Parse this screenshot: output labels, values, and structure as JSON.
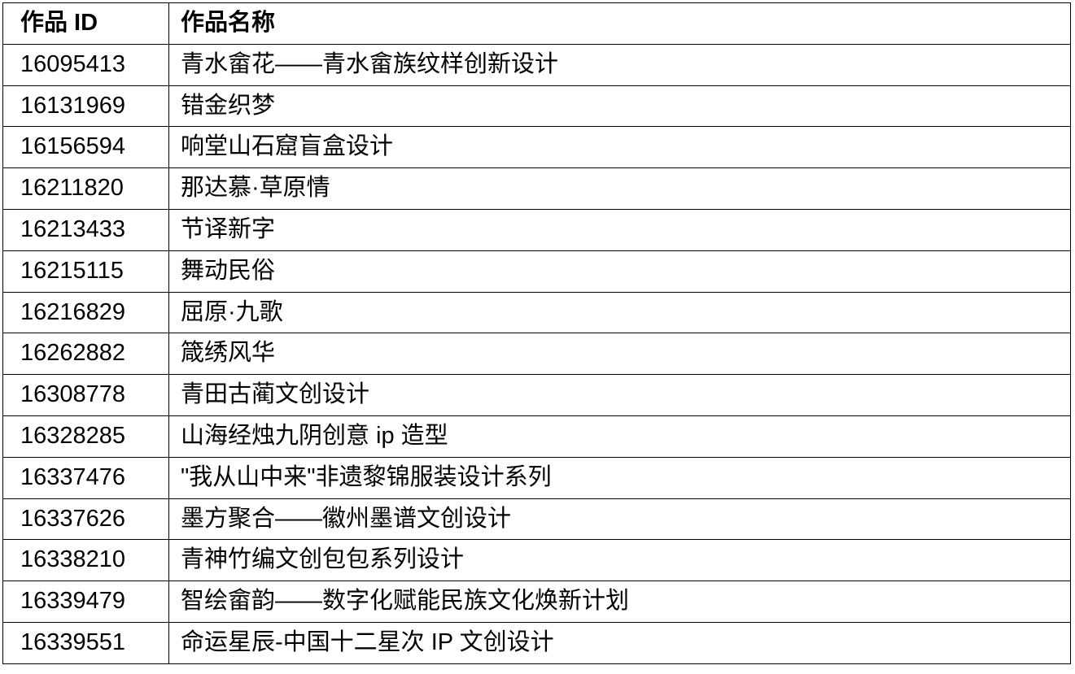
{
  "table": {
    "headers": {
      "id": "作品 ID",
      "name": "作品名称"
    },
    "rows": [
      {
        "id": "16095413",
        "name": "青水畲花——青水畲族纹样创新设计"
      },
      {
        "id": "16131969",
        "name": "错金织梦"
      },
      {
        "id": "16156594",
        "name": "响堂山石窟盲盒设计"
      },
      {
        "id": "16211820",
        "name": "那达慕·草原情"
      },
      {
        "id": "16213433",
        "name": "节译新字"
      },
      {
        "id": "16215115",
        "name": "舞动民俗"
      },
      {
        "id": "16216829",
        "name": "屈原·九歌"
      },
      {
        "id": "16262882",
        "name": "箴绣风华"
      },
      {
        "id": "16308778",
        "name": "青田古蔺文创设计"
      },
      {
        "id": "16328285",
        "name": "山海经烛九阴创意 ip 造型"
      },
      {
        "id": "16337476",
        "name": "\"我从山中来\"非遗黎锦服装设计系列"
      },
      {
        "id": "16337626",
        "name": "墨方聚合——徽州墨谱文创设计"
      },
      {
        "id": "16338210",
        "name": "青神竹编文创包包系列设计"
      },
      {
        "id": "16339479",
        "name": "智绘畲韵——数字化赋能民族文化焕新计划"
      },
      {
        "id": "16339551",
        "name": "命运星辰-中国十二星次 IP 文创设计"
      }
    ]
  }
}
